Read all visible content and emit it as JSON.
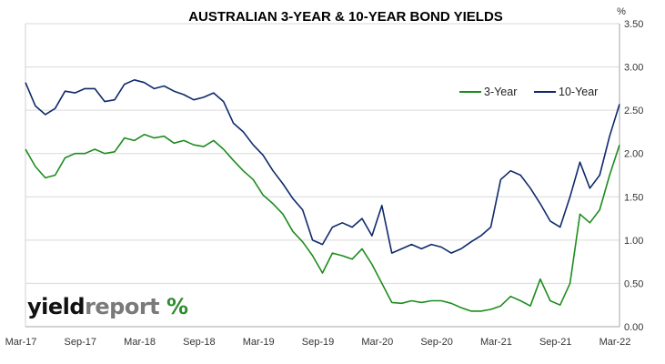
{
  "chart_data": {
    "type": "line",
    "title": "AUSTRALIAN 3-YEAR & 10-YEAR BOND YIELDS",
    "ylabel": "%",
    "x": [
      "Mar-17",
      "Apr-17",
      "May-17",
      "Jun-17",
      "Jul-17",
      "Aug-17",
      "Sep-17",
      "Oct-17",
      "Nov-17",
      "Dec-17",
      "Jan-18",
      "Feb-18",
      "Mar-18",
      "Apr-18",
      "May-18",
      "Jun-18",
      "Jul-18",
      "Aug-18",
      "Sep-18",
      "Oct-18",
      "Nov-18",
      "Dec-18",
      "Jan-19",
      "Feb-19",
      "Mar-19",
      "Apr-19",
      "May-19",
      "Jun-19",
      "Jul-19",
      "Aug-19",
      "Sep-19",
      "Oct-19",
      "Nov-19",
      "Dec-19",
      "Jan-20",
      "Feb-20",
      "Mar-20",
      "Apr-20",
      "May-20",
      "Jun-20",
      "Jul-20",
      "Aug-20",
      "Sep-20",
      "Oct-20",
      "Nov-20",
      "Dec-20",
      "Jan-21",
      "Feb-21",
      "Mar-21",
      "Apr-21",
      "May-21",
      "Jun-21",
      "Jul-21",
      "Aug-21",
      "Sep-21",
      "Oct-21",
      "Nov-21",
      "Dec-21",
      "Jan-22",
      "Feb-22",
      "Mar-22"
    ],
    "x_tick_labels": [
      "Mar-17",
      "Sep-17",
      "Mar-18",
      "Sep-18",
      "Mar-19",
      "Sep-19",
      "Mar-20",
      "Sep-20",
      "Mar-21",
      "Sep-21",
      "Mar-22"
    ],
    "ylim": [
      0,
      3.5
    ],
    "y_ticks": [
      "0.00",
      "0.50",
      "1.00",
      "1.50",
      "2.00",
      "2.50",
      "3.00",
      "3.50"
    ],
    "grid": true,
    "legend_position": "top-right",
    "series": [
      {
        "name": "3-Year",
        "color": "#1e8c1e",
        "values": [
          2.05,
          1.85,
          1.72,
          1.75,
          1.95,
          2.0,
          2.0,
          2.05,
          2.0,
          2.02,
          2.18,
          2.15,
          2.22,
          2.18,
          2.2,
          2.12,
          2.15,
          2.1,
          2.08,
          2.15,
          2.05,
          1.92,
          1.8,
          1.7,
          1.52,
          1.42,
          1.3,
          1.1,
          0.98,
          0.82,
          0.62,
          0.85,
          0.82,
          0.78,
          0.9,
          0.72,
          0.5,
          0.28,
          0.27,
          0.3,
          0.28,
          0.3,
          0.3,
          0.27,
          0.22,
          0.18,
          0.18,
          0.2,
          0.24,
          0.35,
          0.3,
          0.24,
          0.55,
          0.3,
          0.25,
          0.5,
          1.3,
          1.2,
          1.35,
          1.75,
          2.1
        ]
      },
      {
        "name": "10-Year",
        "color": "#0f2a6b",
        "values": [
          2.82,
          2.55,
          2.45,
          2.52,
          2.72,
          2.7,
          2.75,
          2.75,
          2.6,
          2.62,
          2.8,
          2.85,
          2.82,
          2.75,
          2.78,
          2.72,
          2.68,
          2.62,
          2.65,
          2.7,
          2.6,
          2.35,
          2.25,
          2.1,
          1.98,
          1.8,
          1.65,
          1.48,
          1.35,
          1.0,
          0.95,
          1.15,
          1.2,
          1.15,
          1.25,
          1.05,
          1.4,
          0.85,
          0.9,
          0.95,
          0.9,
          0.95,
          0.92,
          0.85,
          0.9,
          0.98,
          1.05,
          1.15,
          1.7,
          1.8,
          1.75,
          1.6,
          1.42,
          1.22,
          1.15,
          1.5,
          1.9,
          1.6,
          1.75,
          2.2,
          2.57
        ]
      }
    ]
  },
  "branding": {
    "part1": "yield",
    "part2": "report",
    "part3": " ",
    "percent": "%"
  }
}
